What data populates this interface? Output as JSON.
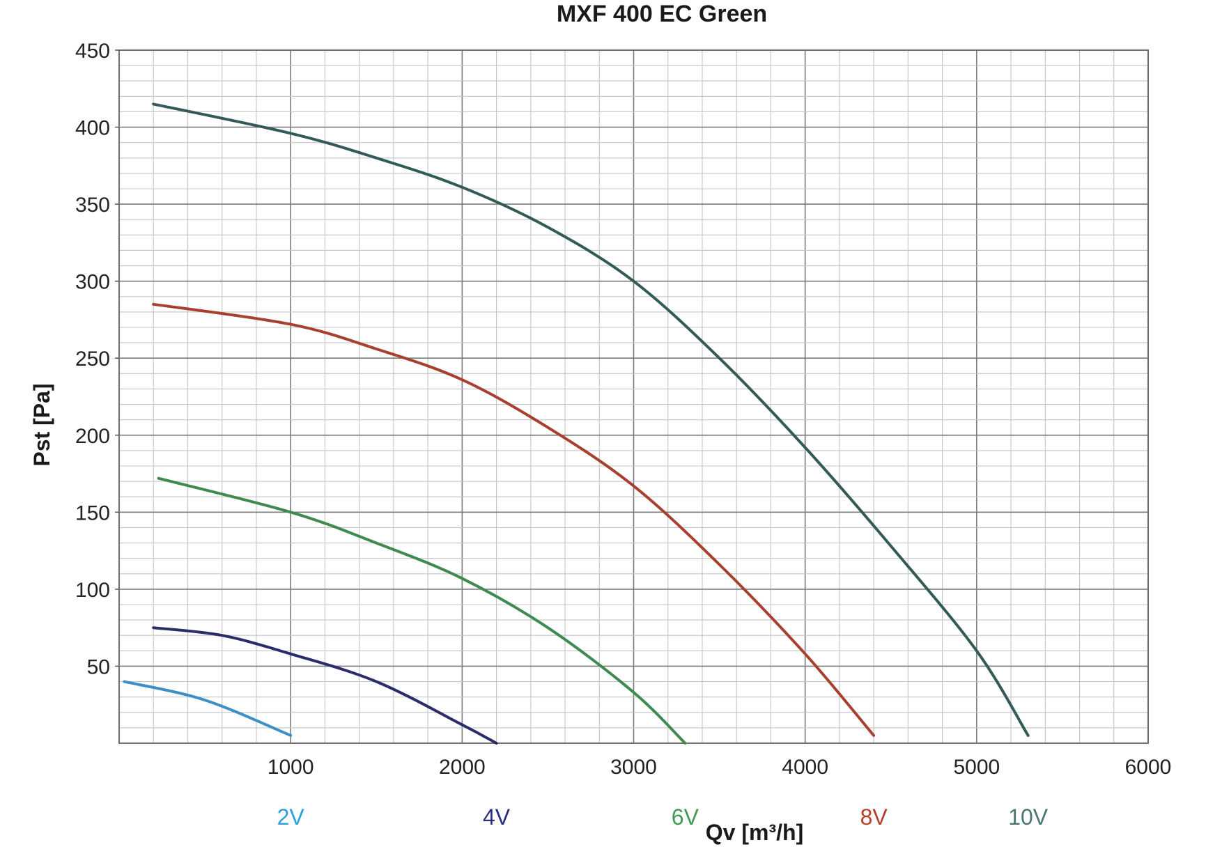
{
  "chart_data": {
    "type": "line",
    "title": "MXF 400 EC Green",
    "xlabel": "Qv [m³/h]",
    "ylabel": "Pst [Pa]",
    "xlim": [
      0,
      6000
    ],
    "ylim": [
      0,
      450
    ],
    "x_ticks": [
      "1000",
      "2000",
      "3000",
      "4000",
      "5000",
      "6000"
    ],
    "y_ticks": [
      "50",
      "100",
      "150",
      "200",
      "250",
      "300",
      "350",
      "400",
      "450"
    ],
    "grid": true,
    "legend": "series labels below x-axis",
    "series": [
      {
        "name": "2V",
        "color": "#3d8fc6",
        "label_color": "#2aa0dc",
        "points": [
          [
            30,
            40
          ],
          [
            500,
            28
          ],
          [
            1000,
            5
          ]
        ]
      },
      {
        "name": "4V",
        "color": "#2b2d6b",
        "label_color": "#2b2d7e",
        "points": [
          [
            200,
            75
          ],
          [
            600,
            70
          ],
          [
            1000,
            58
          ],
          [
            1500,
            40
          ],
          [
            2000,
            12
          ],
          [
            2200,
            0
          ]
        ]
      },
      {
        "name": "6V",
        "color": "#3f8a4f",
        "label_color": "#3f9a55",
        "points": [
          [
            230,
            172
          ],
          [
            1000,
            150
          ],
          [
            1500,
            130
          ],
          [
            2000,
            107
          ],
          [
            2500,
            75
          ],
          [
            3000,
            33
          ],
          [
            3300,
            0
          ]
        ]
      },
      {
        "name": "8V",
        "color": "#a8402f",
        "label_color": "#b6402c",
        "points": [
          [
            200,
            285
          ],
          [
            1000,
            272
          ],
          [
            1500,
            256
          ],
          [
            2000,
            236
          ],
          [
            2500,
            205
          ],
          [
            3000,
            167
          ],
          [
            3500,
            116
          ],
          [
            4000,
            58
          ],
          [
            4400,
            5
          ]
        ]
      },
      {
        "name": "10V",
        "color": "#325a57",
        "label_color": "#4a7570",
        "points": [
          [
            200,
            415
          ],
          [
            1000,
            396
          ],
          [
            1500,
            380
          ],
          [
            2000,
            361
          ],
          [
            2500,
            335
          ],
          [
            3000,
            300
          ],
          [
            3500,
            250
          ],
          [
            4000,
            192
          ],
          [
            4500,
            128
          ],
          [
            5000,
            60
          ],
          [
            5300,
            5
          ]
        ]
      }
    ]
  }
}
